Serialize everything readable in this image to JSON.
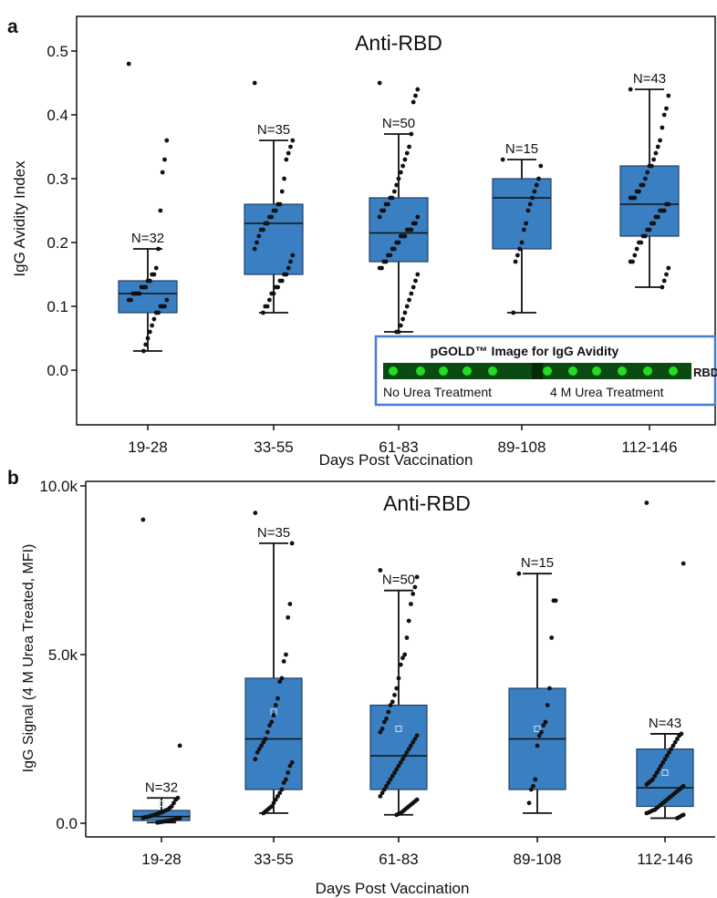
{
  "chart_data": [
    {
      "panel_label": "a",
      "type": "box",
      "title": "Anti-RBD",
      "xlabel": "Days Post Vaccination",
      "ylabel": "IgG Avidity Index",
      "ylim": [
        -0.05,
        0.55
      ],
      "yticks": [
        "0.0",
        "0.1",
        "0.2",
        "0.3",
        "0.4",
        "0.5"
      ],
      "ytick_values": [
        0.0,
        0.1,
        0.2,
        0.3,
        0.4,
        0.5
      ],
      "categories": [
        "19-28",
        "33-55",
        "61-83",
        "89-108",
        "112-146"
      ],
      "box_color": "#3a7fc1",
      "boxes": [
        {
          "label": "19-28",
          "n_label": "N=32",
          "whisker_low": 0.03,
          "q1": 0.09,
          "median": 0.12,
          "q3": 0.14,
          "whisker_high": 0.19,
          "points": [
            0.48,
            0.36,
            0.33,
            0.31,
            0.25,
            0.19,
            0.16,
            0.15,
            0.15,
            0.14,
            0.14,
            0.13,
            0.13,
            0.13,
            0.12,
            0.12,
            0.12,
            0.12,
            0.11,
            0.11,
            0.11,
            0.1,
            0.1,
            0.1,
            0.09,
            0.09,
            0.08,
            0.07,
            0.06,
            0.05,
            0.04,
            0.03
          ]
        },
        {
          "label": "33-55",
          "n_label": "N=35",
          "whisker_low": 0.09,
          "q1": 0.15,
          "median": 0.23,
          "q3": 0.26,
          "whisker_high": 0.36,
          "points": [
            0.45,
            0.36,
            0.35,
            0.34,
            0.33,
            0.3,
            0.28,
            0.26,
            0.26,
            0.25,
            0.25,
            0.24,
            0.24,
            0.23,
            0.23,
            0.22,
            0.22,
            0.21,
            0.2,
            0.19,
            0.18,
            0.17,
            0.16,
            0.15,
            0.15,
            0.14,
            0.14,
            0.13,
            0.13,
            0.12,
            0.12,
            0.11,
            0.1,
            0.1,
            0.09
          ]
        },
        {
          "label": "61-83",
          "n_label": "N=50",
          "whisker_low": 0.06,
          "q1": 0.17,
          "median": 0.215,
          "q3": 0.27,
          "whisker_high": 0.37,
          "points": [
            0.45,
            0.44,
            0.43,
            0.42,
            0.37,
            0.35,
            0.34,
            0.33,
            0.32,
            0.31,
            0.3,
            0.29,
            0.28,
            0.27,
            0.27,
            0.26,
            0.26,
            0.25,
            0.25,
            0.24,
            0.24,
            0.23,
            0.23,
            0.22,
            0.22,
            0.22,
            0.21,
            0.21,
            0.21,
            0.2,
            0.2,
            0.19,
            0.19,
            0.18,
            0.18,
            0.17,
            0.17,
            0.16,
            0.16,
            0.15,
            0.14,
            0.13,
            0.12,
            0.11,
            0.1,
            0.09,
            0.08,
            0.07,
            0.06,
            0.06
          ]
        },
        {
          "label": "89-108",
          "n_label": "N=15",
          "whisker_low": 0.09,
          "q1": 0.19,
          "median": 0.27,
          "q3": 0.3,
          "whisker_high": 0.33,
          "points": [
            0.33,
            0.32,
            0.3,
            0.29,
            0.28,
            0.27,
            0.26,
            0.25,
            0.23,
            0.22,
            0.2,
            0.19,
            0.18,
            0.17,
            0.09
          ]
        },
        {
          "label": "112-146",
          "n_label": "N=43",
          "whisker_low": 0.13,
          "q1": 0.21,
          "median": 0.26,
          "q3": 0.32,
          "whisker_high": 0.44,
          "points": [
            0.44,
            0.43,
            0.41,
            0.4,
            0.38,
            0.36,
            0.35,
            0.34,
            0.33,
            0.32,
            0.32,
            0.31,
            0.3,
            0.29,
            0.29,
            0.28,
            0.28,
            0.27,
            0.27,
            0.27,
            0.26,
            0.26,
            0.25,
            0.25,
            0.25,
            0.24,
            0.24,
            0.23,
            0.23,
            0.22,
            0.22,
            0.21,
            0.21,
            0.2,
            0.2,
            0.19,
            0.18,
            0.17,
            0.17,
            0.16,
            0.15,
            0.14,
            0.13
          ]
        }
      ],
      "inset": {
        "title": "pGOLD™ Image for IgG Avidity",
        "row_label": "RBD",
        "left_caption": "No Urea Treatment",
        "right_caption": "4 M Urea Treatment",
        "border_color": "#4a7bd4",
        "spot_color": "#22dd22",
        "strip_color": "#0b4a12"
      }
    },
    {
      "panel_label": "b",
      "type": "box",
      "title": "Anti-RBD",
      "xlabel": "Days Post Vaccination",
      "ylabel": "IgG Signal (4 M Urea Treated, MFI)",
      "ylim": [
        -500,
        10000
      ],
      "yticks": [
        "0.0",
        "5.0k",
        "10.0k"
      ],
      "ytick_values": [
        0,
        5000,
        10000
      ],
      "categories": [
        "19-28",
        "33-55",
        "61-83",
        "89-108",
        "112-146"
      ],
      "box_color": "#3a7fc1",
      "boxes": [
        {
          "label": "19-28",
          "n_label": "N=32",
          "whisker_low": 20,
          "q1": 80,
          "median": 200,
          "q3": 380,
          "whisker_high": 750,
          "mean": 580,
          "points": [
            9000,
            2300,
            750,
            700,
            600,
            500,
            450,
            400,
            380,
            350,
            320,
            300,
            280,
            260,
            240,
            220,
            200,
            190,
            180,
            160,
            150,
            140,
            120,
            100,
            90,
            80,
            70,
            60,
            50,
            40,
            30,
            20
          ]
        },
        {
          "label": "33-55",
          "n_label": "N=35",
          "whisker_low": 300,
          "q1": 1000,
          "median": 2500,
          "q3": 4300,
          "whisker_high": 8300,
          "mean": 3300,
          "points": [
            9200,
            8300,
            6500,
            6100,
            5000,
            4800,
            4300,
            4200,
            3700,
            3500,
            3200,
            3000,
            2900,
            2700,
            2500,
            2400,
            2300,
            2200,
            2100,
            1900,
            1800,
            1700,
            1500,
            1300,
            1200,
            1000,
            900,
            800,
            700,
            600,
            500,
            450,
            400,
            350,
            300
          ]
        },
        {
          "label": "61-83",
          "n_label": "N=50",
          "whisker_low": 250,
          "q1": 1000,
          "median": 2000,
          "q3": 3500,
          "whisker_high": 6900,
          "mean": 2800,
          "points": [
            7500,
            7300,
            7000,
            6800,
            6500,
            6000,
            5500,
            5000,
            4900,
            4700,
            4300,
            4000,
            3800,
            3600,
            3500,
            3300,
            3100,
            3000,
            2800,
            2700,
            2600,
            2500,
            2400,
            2300,
            2200,
            2100,
            2000,
            1900,
            1800,
            1700,
            1600,
            1500,
            1400,
            1300,
            1200,
            1100,
            1000,
            900,
            800,
            700,
            650,
            600,
            550,
            500,
            450,
            400,
            350,
            300,
            280,
            250
          ]
        },
        {
          "label": "89-108",
          "n_label": "N=15",
          "whisker_low": 300,
          "q1": 1000,
          "median": 2500,
          "q3": 4000,
          "whisker_high": 7400,
          "mean": 2800,
          "points": [
            7400,
            6600,
            6600,
            5500,
            4000,
            3500,
            3000,
            2900,
            2700,
            2600,
            2300,
            1300,
            1100,
            1000,
            600
          ]
        },
        {
          "label": "112-146",
          "n_label": "N=43",
          "whisker_low": 150,
          "q1": 500,
          "median": 1050,
          "q3": 2200,
          "whisker_high": 2650,
          "mean": 1500,
          "points": [
            9500,
            7700,
            2650,
            2600,
            2500,
            2400,
            2300,
            2200,
            2100,
            2000,
            1900,
            1800,
            1700,
            1600,
            1500,
            1400,
            1300,
            1250,
            1200,
            1150,
            1100,
            1050,
            1000,
            950,
            900,
            850,
            800,
            750,
            700,
            650,
            600,
            550,
            500,
            450,
            400,
            380,
            350,
            320,
            300,
            250,
            220,
            180,
            150
          ]
        }
      ]
    }
  ]
}
